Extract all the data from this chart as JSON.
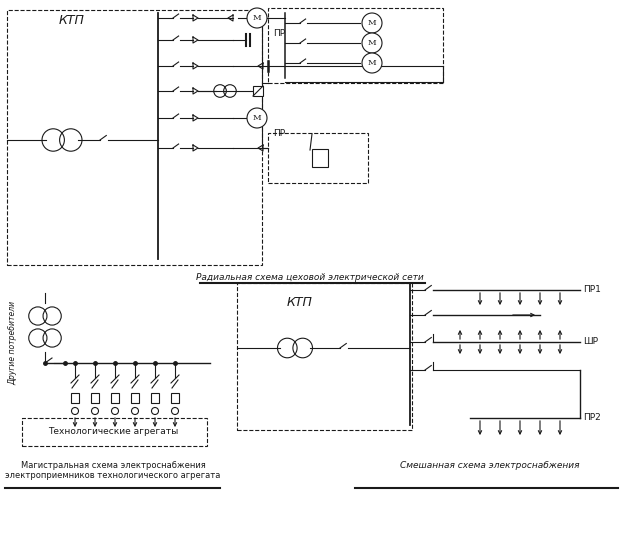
{
  "bg_color": "#ffffff",
  "line_color": "#1a1a1a",
  "title1": "Радиальная схема цеховой электрической сети",
  "title2": "Магистральная схема электроснабжения\nэлектроприемников технологического агрегата",
  "title3": "Смешанная схема электроснабжения",
  "label_ktp1": "КТП",
  "label_ktp2": "КТП",
  "label_pr_top": "ПР",
  "label_pr_bottom": "ПР",
  "label_pr1": "ПР1",
  "label_pr2": "ПР2",
  "label_shr": "ШР",
  "label_other": "Другие потребители",
  "label_tech": "Технологические агрегаты"
}
